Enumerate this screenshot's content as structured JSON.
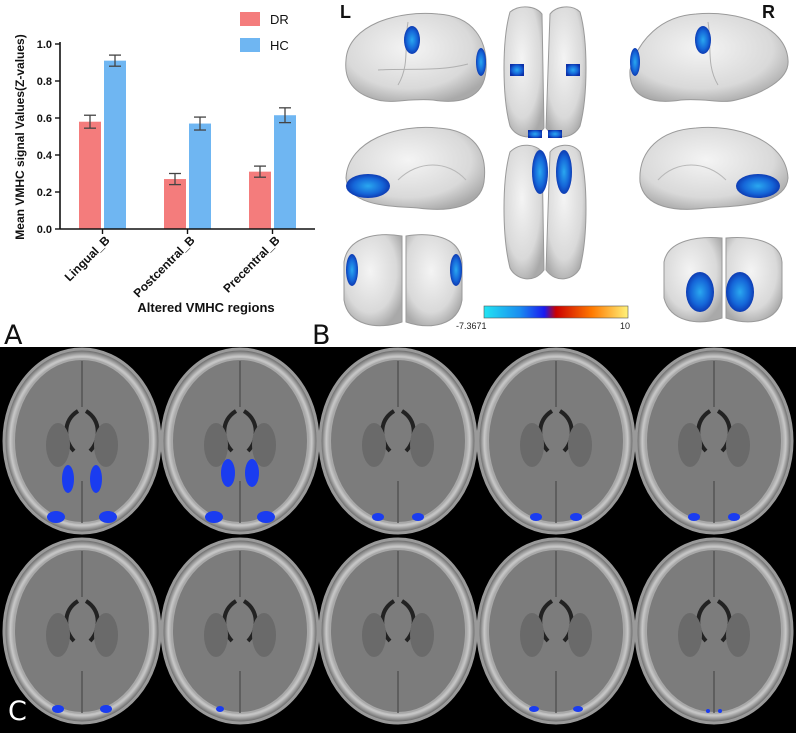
{
  "chart_data": {
    "type": "bar",
    "categories": [
      "Lingual_B",
      "Postcentral_B",
      "Precentral_B"
    ],
    "series": [
      {
        "name": "DR",
        "values": [
          0.58,
          0.27,
          0.31
        ],
        "errors": [
          0.035,
          0.03,
          0.03
        ],
        "color": "#f47c7c"
      },
      {
        "name": "HC",
        "values": [
          0.91,
          0.57,
          0.615
        ],
        "errors": [
          0.03,
          0.035,
          0.04
        ],
        "color": "#6fb6f2"
      }
    ],
    "ylabel": "Mean VMHC signal Values(Z-values)",
    "xlabel": "Altered VMHC regions",
    "ylim": [
      0,
      1.0
    ],
    "yticks": [
      "0.0",
      "0.2",
      "0.4",
      "0.6",
      "0.8",
      "1.0"
    ],
    "legend_position": "top-right"
  },
  "panels": {
    "a": "A",
    "b": "B",
    "c": "C"
  },
  "brain": {
    "left_label": "L",
    "right_label": "R",
    "colorbar_min": "-7.3671",
    "colorbar_max": "10"
  }
}
